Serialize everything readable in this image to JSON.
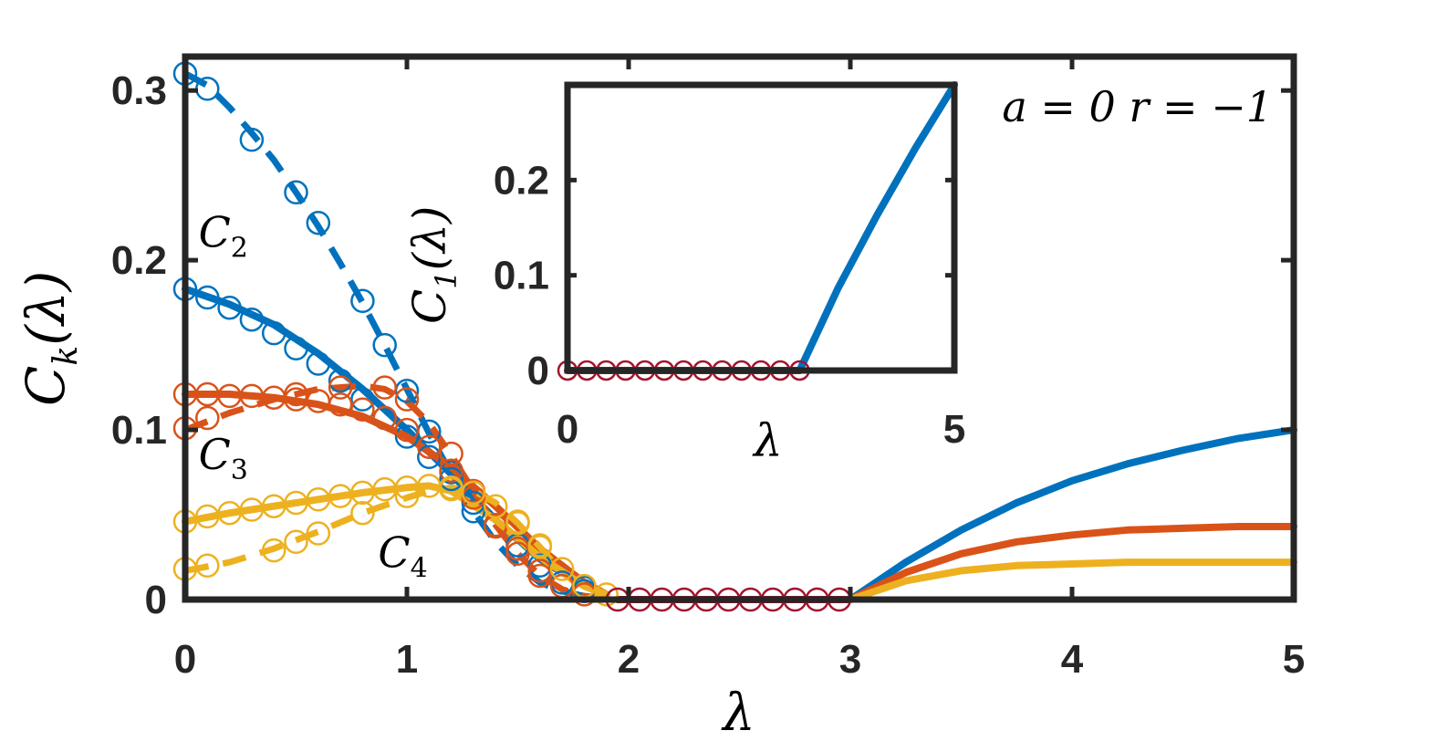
{
  "chart_data": [
    {
      "id": "main",
      "type": "line",
      "xlabel": "λ",
      "ylabel_base": "C",
      "ylabel_sub": "k",
      "ylabel_arg": "(λ)",
      "xlim": [
        0,
        5
      ],
      "ylim": [
        0,
        0.32
      ],
      "xticks": [
        0,
        1,
        2,
        3,
        4,
        5
      ],
      "xtick_labels": [
        "0",
        "1",
        "2",
        "3",
        "4",
        "5"
      ],
      "yticks": [
        0,
        0.1,
        0.2,
        0.3
      ],
      "ytick_labels": [
        "0",
        "0.1",
        "0.2",
        "0.3"
      ],
      "grid": false,
      "annotation": {
        "text": "a = 0  r = −1"
      },
      "curve_labels": [
        {
          "base": "C",
          "sub": "2",
          "x": 0.06,
          "y": 0.208
        },
        {
          "base": "C",
          "sub": "3",
          "x": 0.06,
          "y": 0.077
        },
        {
          "base": "C",
          "sub": "4",
          "x": 0.87,
          "y": 0.019
        }
      ],
      "colors": {
        "blue": "#0072bd",
        "orange": "#d95319",
        "yellow": "#edb120",
        "crimson": "#a2142f",
        "axes": "#262626"
      },
      "series": [
        {
          "key": "k2-solid",
          "color": "#0072bd",
          "style": "solid",
          "x": [
            0,
            0.2,
            0.4,
            0.6,
            0.8,
            1.0,
            1.2,
            1.4,
            1.6,
            1.8,
            1.9
          ],
          "y": [
            0.183,
            0.174,
            0.162,
            0.145,
            0.124,
            0.1,
            0.074,
            0.047,
            0.024,
            0.008,
            0.003
          ]
        },
        {
          "key": "k2-dashed",
          "color": "#0072bd",
          "style": "dashed",
          "x": [
            0,
            0.1,
            0.2,
            0.3,
            0.4,
            0.5,
            0.6,
            0.7,
            0.8,
            0.9,
            1.0,
            1.1,
            1.2,
            1.3,
            1.4,
            1.5,
            1.6,
            1.7,
            1.8,
            1.9
          ],
          "y": [
            0.31,
            0.303,
            0.29,
            0.275,
            0.259,
            0.24,
            0.22,
            0.198,
            0.175,
            0.15,
            0.124,
            0.098,
            0.074,
            0.052,
            0.034,
            0.02,
            0.01,
            0.005,
            0.002,
            0.001
          ]
        },
        {
          "key": "k2-circles-a",
          "color": "#0072bd",
          "style": "markers",
          "x": [
            0,
            0.1,
            0.2,
            0.3,
            0.4,
            0.5,
            0.6,
            0.7,
            0.8,
            0.9,
            1.0,
            1.1,
            1.2,
            1.3,
            1.4,
            1.5,
            1.6,
            1.7,
            1.8
          ],
          "y": [
            0.183,
            0.178,
            0.172,
            0.165,
            0.157,
            0.148,
            0.139,
            0.129,
            0.118,
            0.107,
            0.096,
            0.084,
            0.071,
            0.057,
            0.043,
            0.03,
            0.02,
            0.01,
            0.005
          ]
        },
        {
          "key": "k2-circles-b",
          "color": "#0072bd",
          "style": "markers",
          "x": [
            0,
            0.1,
            0.3,
            0.5,
            0.6,
            0.8,
            0.9,
            1.0,
            1.1,
            1.2,
            1.3,
            1.5,
            1.6,
            1.8
          ],
          "y": [
            0.31,
            0.301,
            0.271,
            0.24,
            0.222,
            0.176,
            0.15,
            0.123,
            0.099,
            0.075,
            0.052,
            0.032,
            0.017,
            0.007
          ]
        },
        {
          "key": "k3-solid",
          "color": "#d95319",
          "style": "solid",
          "x": [
            0,
            0.2,
            0.4,
            0.6,
            0.8,
            1.0,
            1.2,
            1.4,
            1.6,
            1.8,
            1.9
          ],
          "y": [
            0.121,
            0.121,
            0.119,
            0.115,
            0.108,
            0.096,
            0.078,
            0.055,
            0.03,
            0.01,
            0.003
          ]
        },
        {
          "key": "k3-dashed",
          "color": "#d95319",
          "style": "dashed",
          "x": [
            0,
            0.2,
            0.4,
            0.6,
            0.8,
            0.9,
            1.0,
            1.1,
            1.2,
            1.3,
            1.4,
            1.5,
            1.6,
            1.7,
            1.8,
            1.9
          ],
          "y": [
            0.1,
            0.11,
            0.118,
            0.124,
            0.126,
            0.124,
            0.117,
            0.104,
            0.085,
            0.064,
            0.044,
            0.027,
            0.014,
            0.006,
            0.002,
            0.001
          ]
        },
        {
          "key": "k3-circles-a",
          "color": "#d95319",
          "style": "markers",
          "x": [
            0,
            0.1,
            0.2,
            0.3,
            0.4,
            0.5,
            0.6,
            0.7,
            0.8,
            0.9,
            1.0,
            1.1,
            1.2,
            1.3,
            1.4,
            1.5,
            1.6,
            1.7,
            1.8
          ],
          "y": [
            0.121,
            0.121,
            0.12,
            0.12,
            0.119,
            0.118,
            0.117,
            0.115,
            0.112,
            0.107,
            0.1,
            0.09,
            0.076,
            0.06,
            0.044,
            0.03,
            0.017,
            0.008,
            0.003
          ]
        },
        {
          "key": "k3-circles-b",
          "color": "#d95319",
          "style": "markers",
          "x": [
            0,
            0.1,
            0.5,
            0.7,
            0.9,
            1.0,
            1.2,
            1.3,
            1.4,
            1.5,
            1.6
          ],
          "y": [
            0.101,
            0.107,
            0.121,
            0.125,
            0.125,
            0.118,
            0.086,
            0.064,
            0.043,
            0.027,
            0.014
          ]
        },
        {
          "key": "k4-solid",
          "color": "#edb120",
          "style": "solid",
          "x": [
            0,
            0.2,
            0.4,
            0.6,
            0.8,
            1.0,
            1.1,
            1.2,
            1.4,
            1.6,
            1.8,
            1.9
          ],
          "y": [
            0.046,
            0.051,
            0.055,
            0.059,
            0.063,
            0.066,
            0.067,
            0.064,
            0.047,
            0.025,
            0.008,
            0.003
          ]
        },
        {
          "key": "k4-dashed",
          "color": "#edb120",
          "style": "dashed",
          "x": [
            0,
            0.2,
            0.4,
            0.6,
            0.8,
            1.0,
            1.1,
            1.2,
            1.3,
            1.4,
            1.5,
            1.6,
            1.7,
            1.8,
            1.9
          ],
          "y": [
            0.017,
            0.022,
            0.03,
            0.04,
            0.051,
            0.06,
            0.064,
            0.066,
            0.064,
            0.057,
            0.045,
            0.031,
            0.016,
            0.006,
            0.002
          ]
        },
        {
          "key": "k4-circles-a",
          "color": "#edb120",
          "style": "markers",
          "x": [
            0,
            0.1,
            0.2,
            0.3,
            0.4,
            0.5,
            0.6,
            0.7,
            0.8,
            0.9,
            1.0,
            1.1,
            1.2,
            1.3,
            1.4,
            1.5,
            1.6,
            1.7,
            1.8,
            1.9
          ],
          "y": [
            0.046,
            0.049,
            0.051,
            0.053,
            0.055,
            0.057,
            0.059,
            0.061,
            0.063,
            0.065,
            0.066,
            0.067,
            0.066,
            0.063,
            0.055,
            0.045,
            0.031,
            0.018,
            0.008,
            0.003
          ]
        },
        {
          "key": "k4-circles-b",
          "color": "#edb120",
          "style": "markers",
          "x": [
            0,
            0.1,
            0.4,
            0.5,
            0.6,
            0.8,
            1.0,
            1.2,
            1.3,
            1.5,
            1.6
          ],
          "y": [
            0.018,
            0.02,
            0.029,
            0.034,
            0.039,
            0.051,
            0.061,
            0.065,
            0.063,
            0.046,
            0.032
          ]
        },
        {
          "key": "zero-solid",
          "color": "#a2142f",
          "style": "solid",
          "x": [
            1.95,
            3.0
          ],
          "y": [
            0,
            0
          ]
        },
        {
          "key": "zero-circles",
          "color": "#a2142f",
          "style": "markers",
          "x": [
            1.95,
            2.05,
            2.15,
            2.25,
            2.35,
            2.45,
            2.55,
            2.65,
            2.75,
            2.85,
            2.95
          ],
          "y": [
            0,
            0,
            0,
            0,
            0,
            0,
            0,
            0,
            0,
            0,
            0
          ]
        },
        {
          "key": "k2-right",
          "color": "#0072bd",
          "style": "solid",
          "x": [
            3.0,
            3.25,
            3.5,
            3.75,
            4.0,
            4.25,
            4.5,
            4.75,
            5.0
          ],
          "y": [
            0,
            0.022,
            0.041,
            0.057,
            0.07,
            0.08,
            0.088,
            0.095,
            0.1
          ]
        },
        {
          "key": "k3-right",
          "color": "#d95319",
          "style": "solid",
          "x": [
            3.0,
            3.25,
            3.5,
            3.75,
            4.0,
            4.25,
            4.5,
            4.75,
            5.0
          ],
          "y": [
            0,
            0.016,
            0.027,
            0.034,
            0.038,
            0.041,
            0.042,
            0.043,
            0.043
          ]
        },
        {
          "key": "k4-right",
          "color": "#edb120",
          "style": "solid",
          "x": [
            3.0,
            3.25,
            3.5,
            3.75,
            4.0,
            4.25,
            4.5,
            4.75,
            5.0
          ],
          "y": [
            0,
            0.011,
            0.017,
            0.02,
            0.021,
            0.022,
            0.022,
            0.022,
            0.022
          ]
        }
      ]
    },
    {
      "id": "inset",
      "type": "line",
      "xlabel": "λ",
      "ylabel_base": "C",
      "ylabel_sub": "1",
      "ylabel_arg": "(λ)",
      "xlim": [
        0,
        5
      ],
      "ylim": [
        0,
        0.3
      ],
      "xticks": [
        0,
        5
      ],
      "xtick_labels": [
        "0",
        "5"
      ],
      "yticks": [
        0,
        0.1,
        0.2
      ],
      "ytick_labels": [
        "0",
        "0.1",
        "0.2"
      ],
      "grid": false,
      "series": [
        {
          "key": "c1-solid",
          "color": "#0072bd",
          "style": "solid",
          "x": [
            3.0,
            3.5,
            4.0,
            4.5,
            5.0
          ],
          "y": [
            0,
            0.087,
            0.163,
            0.234,
            0.3
          ]
        },
        {
          "key": "c1-zero-line",
          "color": "#a2142f",
          "style": "solid",
          "x": [
            0,
            3.0
          ],
          "y": [
            0,
            0
          ]
        },
        {
          "key": "c1-zero-circles",
          "color": "#a2142f",
          "style": "markers",
          "x": [
            0,
            0.25,
            0.5,
            0.75,
            1.0,
            1.25,
            1.5,
            1.75,
            2.0,
            2.25,
            2.5,
            2.75,
            3.0
          ],
          "y": [
            0,
            0,
            0,
            0,
            0,
            0,
            0,
            0,
            0,
            0,
            0,
            0,
            0
          ]
        }
      ]
    }
  ]
}
